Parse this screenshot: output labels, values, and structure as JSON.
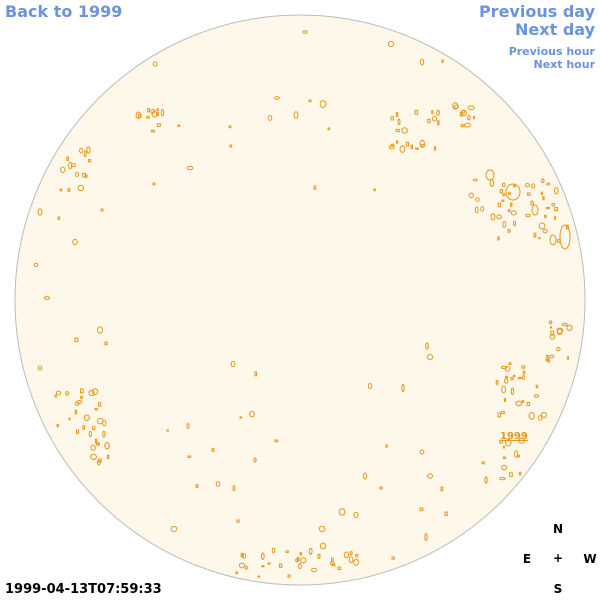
{
  "nav": {
    "back_label": "Back to 1999",
    "prev_day_label": "Previous day",
    "next_day_label": "Next day",
    "prev_hour_label": "Previous hour",
    "next_hour_label": "Next hour"
  },
  "timestamp": "1999-04-13T07:59:33",
  "compass": {
    "n": "N",
    "s": "S",
    "e": "E",
    "w": "W",
    "center": "+"
  },
  "region_label": "1999",
  "colors": {
    "disk_fill": "#fdf8e9",
    "disk_stroke": "#bbbbbb",
    "feature_stroke": "#e8961a",
    "link": "#6b93df"
  }
}
